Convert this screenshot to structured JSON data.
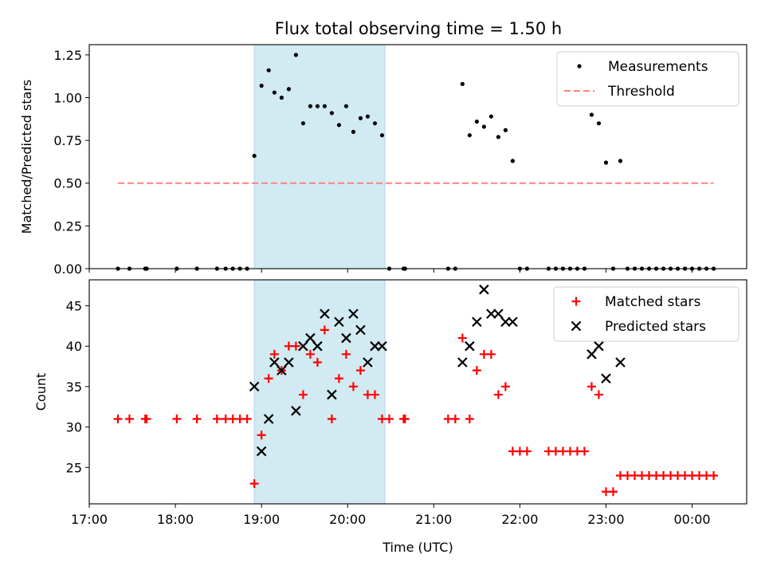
{
  "title": "Flux total observing time = 1.50 h",
  "colors": {
    "highlight": "#add8e6",
    "measurement": "#000000",
    "threshold": "#ff8080",
    "matched": "#ff0000",
    "predicted": "#000000"
  },
  "chart_data": [
    {
      "type": "scatter",
      "ylabel": "Matched/Predicted stars",
      "xlim": [
        "17:00",
        "00:38"
      ],
      "ylim": [
        0,
        1.31
      ],
      "yticks": [
        "0.00",
        "0.25",
        "0.50",
        "0.75",
        "1.00",
        "1.25"
      ],
      "legend": {
        "placement": "top-right",
        "entries": [
          "Measurements",
          "Threshold"
        ]
      },
      "shaded_interval": [
        "18:55",
        "20:26"
      ],
      "threshold": {
        "name": "Threshold",
        "y": 0.5,
        "x": [
          "17:20",
          "00:15"
        ]
      },
      "series": [
        {
          "name": "Measurements",
          "points": [
            [
              "17:20",
              0
            ],
            [
              "17:28",
              0
            ],
            [
              "17:39",
              0
            ],
            [
              "17:40",
              0
            ],
            [
              "18:01",
              0
            ],
            [
              "18:15",
              0
            ],
            [
              "18:29",
              0
            ],
            [
              "18:35",
              0
            ],
            [
              "18:40",
              0
            ],
            [
              "18:45",
              0
            ],
            [
              "18:50",
              0
            ],
            [
              "18:55",
              0.66
            ],
            [
              "19:00",
              1.07
            ],
            [
              "19:05",
              1.16
            ],
            [
              "19:09",
              1.03
            ],
            [
              "19:14",
              1.0
            ],
            [
              "19:19",
              1.05
            ],
            [
              "19:24",
              1.25
            ],
            [
              "19:29",
              0.85
            ],
            [
              "19:34",
              0.95
            ],
            [
              "19:39",
              0.95
            ],
            [
              "19:44",
              0.95
            ],
            [
              "19:49",
              0.91
            ],
            [
              "19:54",
              0.84
            ],
            [
              "19:59",
              0.95
            ],
            [
              "20:04",
              0.8
            ],
            [
              "20:09",
              0.88
            ],
            [
              "20:14",
              0.89
            ],
            [
              "20:19",
              0.85
            ],
            [
              "20:24",
              0.78
            ],
            [
              "20:29",
              0
            ],
            [
              "20:39",
              0
            ],
            [
              "20:40",
              0
            ],
            [
              "21:10",
              0
            ],
            [
              "21:15",
              0
            ],
            [
              "21:20",
              1.08
            ],
            [
              "21:25",
              0.78
            ],
            [
              "21:30",
              0.86
            ],
            [
              "21:35",
              0.83
            ],
            [
              "21:40",
              0.89
            ],
            [
              "21:45",
              0.77
            ],
            [
              "21:50",
              0.81
            ],
            [
              "21:55",
              0.63
            ],
            [
              "22:00",
              0
            ],
            [
              "22:05",
              0
            ],
            [
              "22:20",
              0
            ],
            [
              "22:25",
              0
            ],
            [
              "22:30",
              0
            ],
            [
              "22:35",
              0
            ],
            [
              "22:40",
              0
            ],
            [
              "22:45",
              0
            ],
            [
              "22:50",
              0.9
            ],
            [
              "22:55",
              0.85
            ],
            [
              "23:00",
              0.62
            ],
            [
              "23:05",
              0
            ],
            [
              "23:10",
              0.63
            ],
            [
              "23:15",
              0
            ],
            [
              "23:20",
              0
            ],
            [
              "23:25",
              0
            ],
            [
              "23:30",
              0
            ],
            [
              "23:35",
              0
            ],
            [
              "23:40",
              0
            ],
            [
              "23:45",
              0
            ],
            [
              "23:50",
              0
            ],
            [
              "23:55",
              0
            ],
            [
              "00:00",
              0
            ],
            [
              "00:05",
              0
            ],
            [
              "00:10",
              0
            ],
            [
              "00:15",
              0
            ]
          ]
        }
      ]
    },
    {
      "type": "scatter",
      "xlabel": "Time (UTC)",
      "ylabel": "Count",
      "xlim": [
        "17:00",
        "00:38"
      ],
      "ylim": [
        20.5,
        48.2
      ],
      "xticks": [
        "17:00",
        "18:00",
        "19:00",
        "20:00",
        "21:00",
        "22:00",
        "23:00",
        "00:00"
      ],
      "yticks": [
        "25",
        "30",
        "35",
        "40",
        "45"
      ],
      "legend": {
        "placement": "top-right",
        "entries": [
          "Matched stars",
          "Predicted stars"
        ]
      },
      "shaded_interval": [
        "18:55",
        "20:26"
      ],
      "series": [
        {
          "name": "Matched stars",
          "marker": "plus",
          "points": [
            [
              "17:20",
              31
            ],
            [
              "17:28",
              31
            ],
            [
              "17:39",
              31
            ],
            [
              "17:40",
              31
            ],
            [
              "18:01",
              31
            ],
            [
              "18:15",
              31
            ],
            [
              "18:29",
              31
            ],
            [
              "18:35",
              31
            ],
            [
              "18:40",
              31
            ],
            [
              "18:45",
              31
            ],
            [
              "18:50",
              31
            ],
            [
              "18:55",
              23
            ],
            [
              "19:00",
              29
            ],
            [
              "19:05",
              36
            ],
            [
              "19:09",
              39
            ],
            [
              "19:14",
              37
            ],
            [
              "19:19",
              40
            ],
            [
              "19:24",
              40
            ],
            [
              "19:29",
              34
            ],
            [
              "19:34",
              39
            ],
            [
              "19:39",
              38
            ],
            [
              "19:44",
              42
            ],
            [
              "19:49",
              31
            ],
            [
              "19:54",
              36
            ],
            [
              "19:59",
              39
            ],
            [
              "20:04",
              35
            ],
            [
              "20:09",
              37
            ],
            [
              "20:14",
              34
            ],
            [
              "20:19",
              34
            ],
            [
              "20:24",
              31
            ],
            [
              "20:29",
              31
            ],
            [
              "20:39",
              31
            ],
            [
              "20:40",
              31
            ],
            [
              "21:10",
              31
            ],
            [
              "21:15",
              31
            ],
            [
              "21:20",
              41
            ],
            [
              "21:25",
              31
            ],
            [
              "21:30",
              37
            ],
            [
              "21:35",
              39
            ],
            [
              "21:40",
              39
            ],
            [
              "21:45",
              34
            ],
            [
              "21:50",
              35
            ],
            [
              "21:55",
              27
            ],
            [
              "22:00",
              27
            ],
            [
              "22:05",
              27
            ],
            [
              "22:20",
              27
            ],
            [
              "22:25",
              27
            ],
            [
              "22:30",
              27
            ],
            [
              "22:35",
              27
            ],
            [
              "22:40",
              27
            ],
            [
              "22:45",
              27
            ],
            [
              "22:50",
              35
            ],
            [
              "22:55",
              34
            ],
            [
              "23:00",
              22
            ],
            [
              "23:05",
              22
            ],
            [
              "23:10",
              24
            ],
            [
              "23:15",
              24
            ],
            [
              "23:20",
              24
            ],
            [
              "23:25",
              24
            ],
            [
              "23:30",
              24
            ],
            [
              "23:35",
              24
            ],
            [
              "23:40",
              24
            ],
            [
              "23:45",
              24
            ],
            [
              "23:50",
              24
            ],
            [
              "23:55",
              24
            ],
            [
              "00:00",
              24
            ],
            [
              "00:05",
              24
            ],
            [
              "00:10",
              24
            ],
            [
              "00:15",
              24
            ]
          ]
        },
        {
          "name": "Predicted stars",
          "marker": "x",
          "points": [
            [
              "18:55",
              35
            ],
            [
              "19:00",
              27
            ],
            [
              "19:05",
              31
            ],
            [
              "19:09",
              38
            ],
            [
              "19:14",
              37
            ],
            [
              "19:19",
              38
            ],
            [
              "19:24",
              32
            ],
            [
              "19:29",
              40
            ],
            [
              "19:34",
              41
            ],
            [
              "19:39",
              40
            ],
            [
              "19:44",
              44
            ],
            [
              "19:49",
              34
            ],
            [
              "19:54",
              43
            ],
            [
              "19:59",
              41
            ],
            [
              "20:04",
              44
            ],
            [
              "20:09",
              42
            ],
            [
              "20:14",
              38
            ],
            [
              "20:19",
              40
            ],
            [
              "20:24",
              40
            ],
            [
              "21:20",
              38
            ],
            [
              "21:25",
              40
            ],
            [
              "21:30",
              43
            ],
            [
              "21:35",
              47
            ],
            [
              "21:40",
              44
            ],
            [
              "21:45",
              44
            ],
            [
              "21:50",
              43
            ],
            [
              "21:55",
              43
            ],
            [
              "22:50",
              39
            ],
            [
              "22:55",
              40
            ],
            [
              "23:00",
              36
            ],
            [
              "23:10",
              38
            ]
          ]
        }
      ]
    }
  ]
}
